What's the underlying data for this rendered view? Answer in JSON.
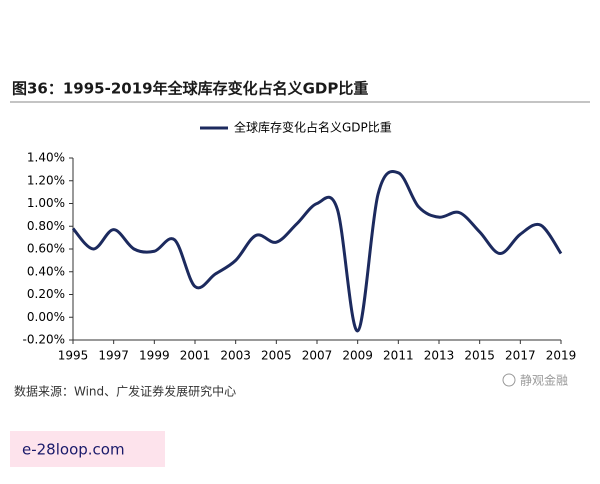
{
  "chart_data": {
    "type": "line",
    "title": "图36：1995-2019年全球库存变化占名义GDP比重",
    "x": [
      1995,
      1996,
      1997,
      1998,
      1999,
      2000,
      2001,
      2002,
      2003,
      2004,
      2005,
      2006,
      2007,
      2008,
      2009,
      2010,
      2011,
      2012,
      2013,
      2014,
      2015,
      2016,
      2017,
      2018,
      2019
    ],
    "series": [
      {
        "name": "全球库存变化占名义GDP比重",
        "color": "#1c2a5e",
        "values": [
          0.78,
          0.6,
          0.77,
          0.6,
          0.58,
          0.68,
          0.27,
          0.38,
          0.5,
          0.72,
          0.66,
          0.82,
          1.0,
          0.95,
          -0.12,
          1.08,
          1.27,
          0.97,
          0.88,
          0.92,
          0.75,
          0.56,
          0.73,
          0.81,
          0.56
        ]
      }
    ],
    "xlim": [
      1995,
      2019
    ],
    "xticks": [
      1995,
      1997,
      1999,
      2001,
      2003,
      2005,
      2007,
      2009,
      2011,
      2013,
      2015,
      2017,
      2019
    ],
    "ylim": [
      -0.2,
      1.4
    ],
    "yticks": [
      {
        "value": -0.2,
        "label": "-0.20%"
      },
      {
        "value": 0,
        "label": "0.00%"
      },
      {
        "value": 0.2,
        "label": "0.20%"
      },
      {
        "value": 0.4,
        "label": "0.40%"
      },
      {
        "value": 0.6,
        "label": "0.60%"
      },
      {
        "value": 0.8,
        "label": "0.80%"
      },
      {
        "value": 1.0,
        "label": "1.00%"
      },
      {
        "value": 1.2,
        "label": "1.20%"
      },
      {
        "value": 1.4,
        "label": "1.40%"
      }
    ],
    "grid": false,
    "legend": "top",
    "source": "数据来源：Wind、广发证券发展研究中心",
    "annotations": [
      "静观金融",
      "e-28loop.com"
    ]
  }
}
